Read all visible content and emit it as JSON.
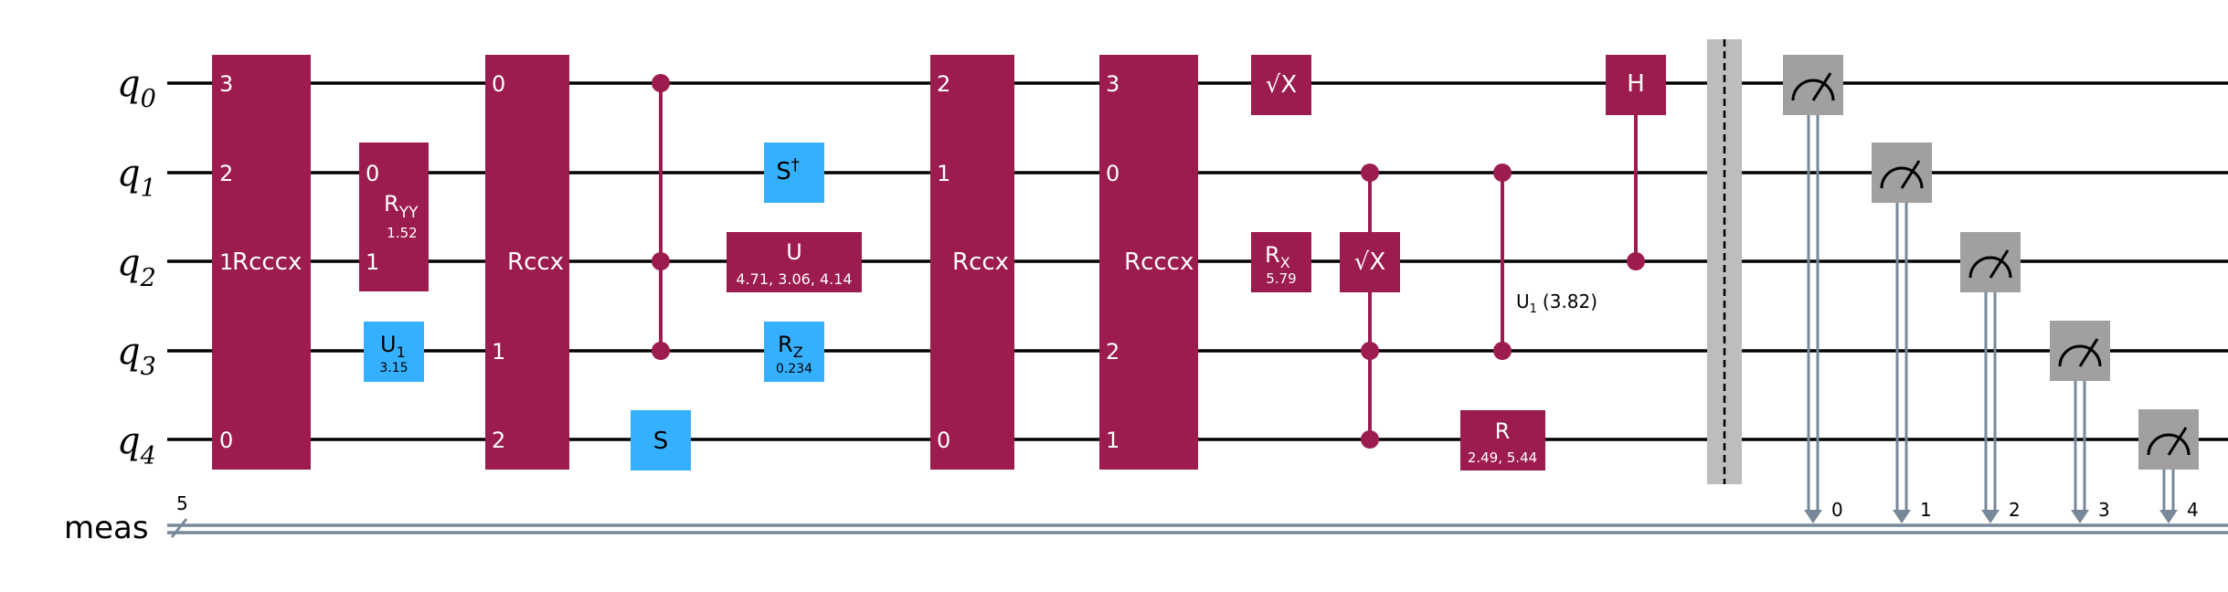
{
  "colors": {
    "multi_gate": "#9c1c4f",
    "single_gate": "#35b0ff",
    "measure": "#a0a0a0",
    "barrier": "#bdbdbd",
    "classical_wire": "#778899",
    "wire": "#000000"
  },
  "qubits": [
    {
      "name": "q",
      "index": "0"
    },
    {
      "name": "q",
      "index": "1"
    },
    {
      "name": "q",
      "index": "2"
    },
    {
      "name": "q",
      "index": "3"
    },
    {
      "name": "q",
      "index": "4"
    }
  ],
  "classical_register": {
    "label": "meas",
    "size": "5"
  },
  "gates": {
    "rcccx_1": {
      "label": "Rcccx",
      "pins": [
        "3",
        "2",
        "1",
        "0"
      ]
    },
    "ryy": {
      "base": "R",
      "sub": "YY",
      "param": "1.52",
      "pins": [
        "0",
        "1"
      ]
    },
    "u1_a": {
      "base": "U",
      "sub": "1",
      "param": "3.15"
    },
    "rccx_1": {
      "label": "Rccx",
      "pins": [
        "0",
        "1",
        "2"
      ]
    },
    "s_gate": {
      "label": "S"
    },
    "sdg_gate": {
      "base": "S",
      "sup": "†"
    },
    "u_gate": {
      "label": "U",
      "param": "4.71, 3.06, 4.14"
    },
    "rz_gate": {
      "base": "R",
      "sub": "Z",
      "param": "0.234"
    },
    "rccx_2": {
      "label": "Rccx",
      "pins": [
        "2",
        "1",
        "0"
      ]
    },
    "rcccx_2": {
      "label": "Rcccx",
      "pins": [
        "3",
        "0",
        "2",
        "1"
      ]
    },
    "sx_gate": {
      "label": "√X"
    },
    "rx_gate": {
      "base": "R",
      "sub": "X",
      "param": "5.79"
    },
    "csx_gate": {
      "label": "√X"
    },
    "cu1_label": {
      "base": "U",
      "sub": "1",
      "param": "(3.82)"
    },
    "r_gate": {
      "label": "R",
      "param": "2.49, 5.44"
    },
    "ch_gate": {
      "label": "H"
    }
  },
  "measure_bits": [
    "0",
    "1",
    "2",
    "3",
    "4"
  ]
}
